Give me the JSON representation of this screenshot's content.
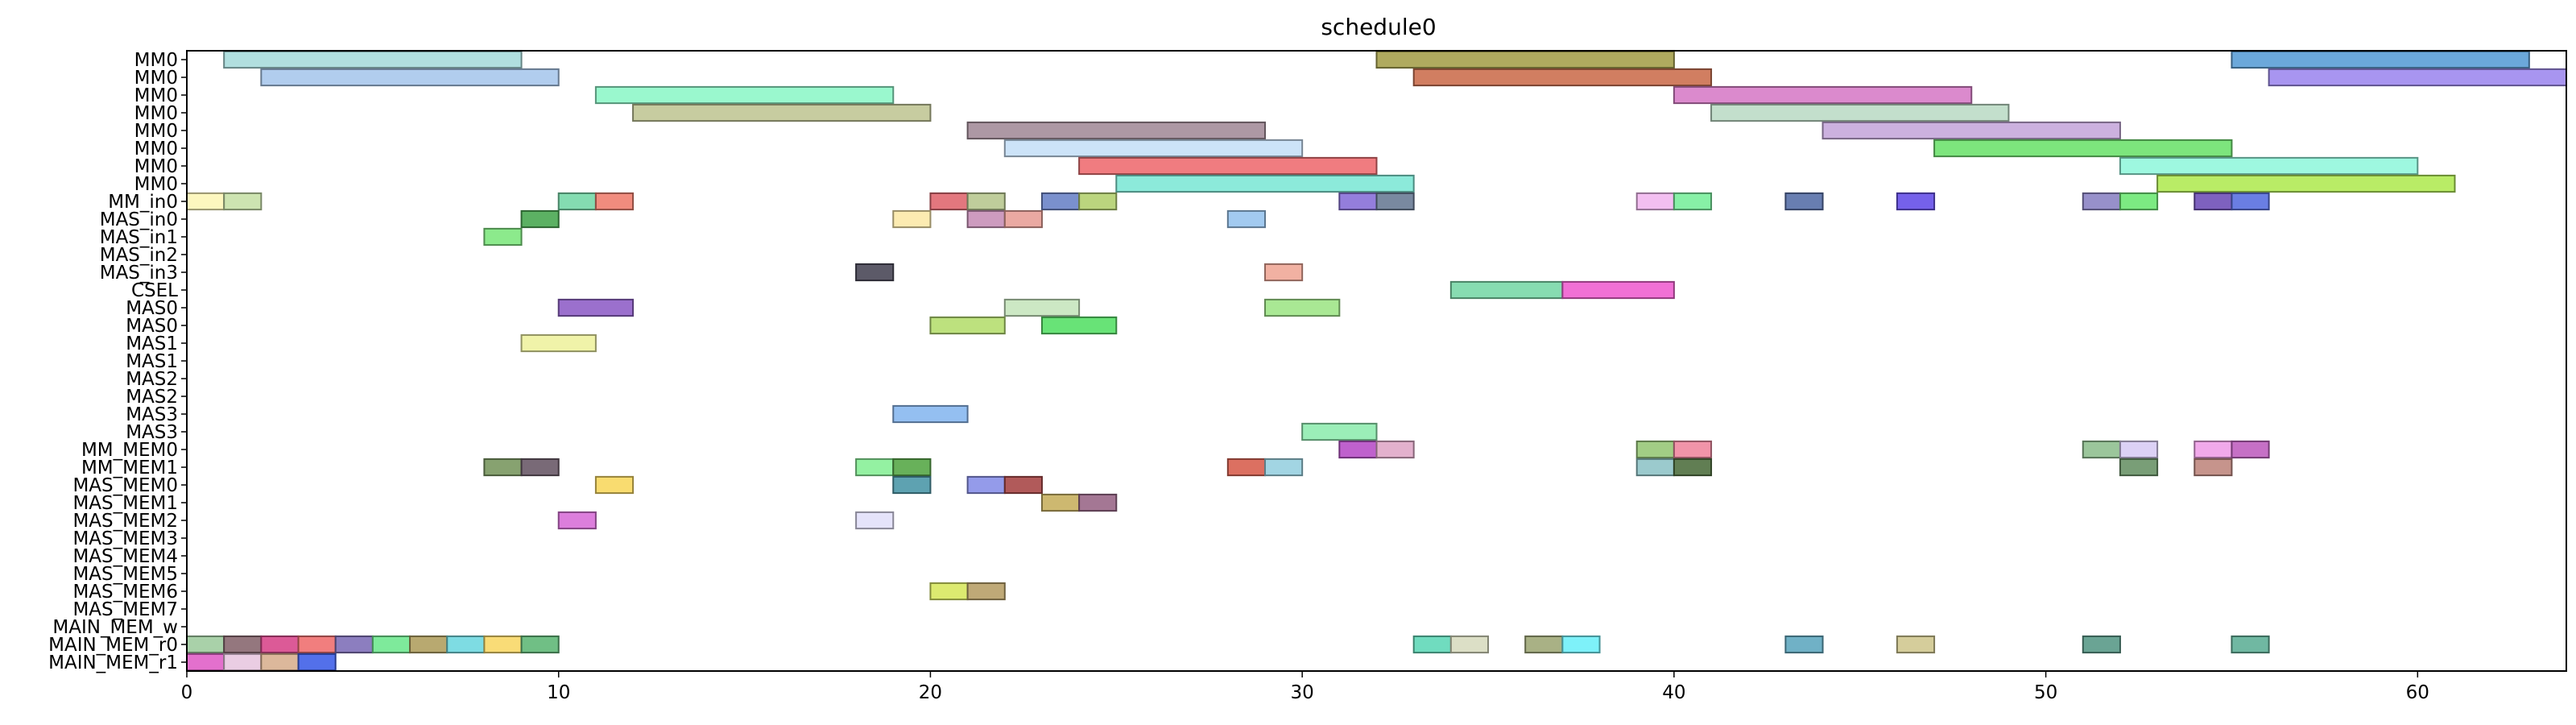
{
  "chart_data": {
    "type": "gantt",
    "title": "schedule0",
    "xlabel": "",
    "ylabel": "",
    "xlim": [
      0,
      64
    ],
    "x_ticks": [
      "0",
      "10",
      "20",
      "30",
      "40",
      "50",
      "60"
    ],
    "x_tick_values": [
      0,
      10,
      20,
      30,
      40,
      50,
      60
    ],
    "grid": false,
    "rows": [
      "MM0",
      "MM0",
      "MM0",
      "MM0",
      "MM0",
      "MM0",
      "MM0",
      "MM0",
      "MM_in0",
      "MAS_in0",
      "MAS_in1",
      "MAS_in2",
      "MAS_in3",
      "CSEL",
      "MAS0",
      "MAS0",
      "MAS1",
      "MAS1",
      "MAS2",
      "MAS2",
      "MAS3",
      "MAS3",
      "MM_MEM0",
      "MM_MEM1",
      "MAS_MEM0",
      "MAS_MEM1",
      "MAS_MEM2",
      "MAS_MEM3",
      "MAS_MEM4",
      "MAS_MEM5",
      "MAS_MEM6",
      "MAS_MEM7",
      "MAIN_MEM_w",
      "MAIN_MEM_r0",
      "MAIN_MEM_r1"
    ],
    "tasks": [
      {
        "row": 0,
        "start": 1,
        "end": 9,
        "color": "#a8dcdc"
      },
      {
        "row": 0,
        "start": 32,
        "end": 40,
        "color": "#a6a14e"
      },
      {
        "row": 0,
        "start": 55,
        "end": 63,
        "color": "#5b9ed6"
      },
      {
        "row": 1,
        "start": 2,
        "end": 10,
        "color": "#a9c8ec"
      },
      {
        "row": 1,
        "start": 33,
        "end": 41,
        "color": "#cc7050"
      },
      {
        "row": 1,
        "start": 56,
        "end": 64,
        "color": "#9f8aee"
      },
      {
        "row": 2,
        "start": 11,
        "end": 19,
        "color": "#8ff7c9"
      },
      {
        "row": 2,
        "start": 40,
        "end": 48,
        "color": "#d77dc8"
      },
      {
        "row": 3,
        "start": 12,
        "end": 20,
        "color": "#c1c796"
      },
      {
        "row": 3,
        "start": 41,
        "end": 49,
        "color": "#bcdcc6"
      },
      {
        "row": 4,
        "start": 21,
        "end": 29,
        "color": "#a48d9a"
      },
      {
        "row": 4,
        "start": 44,
        "end": 52,
        "color": "#c6a8dc"
      },
      {
        "row": 5,
        "start": 22,
        "end": 30,
        "color": "#c6e0f7"
      },
      {
        "row": 5,
        "start": 47,
        "end": 55,
        "color": "#6fe26f"
      },
      {
        "row": 6,
        "start": 24,
        "end": 32,
        "color": "#ee6e72"
      },
      {
        "row": 6,
        "start": 52,
        "end": 60,
        "color": "#93f7dd"
      },
      {
        "row": 7,
        "start": 25,
        "end": 33,
        "color": "#7fe8d6"
      },
      {
        "row": 7,
        "start": 53,
        "end": 61,
        "color": "#b1ea55"
      },
      {
        "row": 8,
        "start": 0,
        "end": 1,
        "color": "#fdf6b8"
      },
      {
        "row": 8,
        "start": 1,
        "end": 2,
        "color": "#c8e1a8"
      },
      {
        "row": 8,
        "start": 10,
        "end": 11,
        "color": "#77d8a8"
      },
      {
        "row": 8,
        "start": 11,
        "end": 12,
        "color": "#f08070"
      },
      {
        "row": 8,
        "start": 20,
        "end": 21,
        "color": "#e06870"
      },
      {
        "row": 8,
        "start": 21,
        "end": 22,
        "color": "#b8c890"
      },
      {
        "row": 8,
        "start": 23,
        "end": 24,
        "color": "#6c84c8"
      },
      {
        "row": 8,
        "start": 24,
        "end": 25,
        "color": "#b4d070"
      },
      {
        "row": 8,
        "start": 31,
        "end": 32,
        "color": "#8870d8"
      },
      {
        "row": 8,
        "start": 32,
        "end": 33,
        "color": "#6a7c96"
      },
      {
        "row": 8,
        "start": 39,
        "end": 40,
        "color": "#f2b8f0"
      },
      {
        "row": 8,
        "start": 40,
        "end": 41,
        "color": "#7aee9c"
      },
      {
        "row": 8,
        "start": 43,
        "end": 44,
        "color": "#5870a8"
      },
      {
        "row": 8,
        "start": 46,
        "end": 47,
        "color": "#6650e8"
      },
      {
        "row": 8,
        "start": 51,
        "end": 52,
        "color": "#8c84c4"
      },
      {
        "row": 8,
        "start": 52,
        "end": 53,
        "color": "#6ee874"
      },
      {
        "row": 8,
        "start": 54,
        "end": 55,
        "color": "#7050b8"
      },
      {
        "row": 8,
        "start": 55,
        "end": 56,
        "color": "#5a70e0"
      },
      {
        "row": 9,
        "start": 9,
        "end": 10,
        "color": "#4aa852"
      },
      {
        "row": 9,
        "start": 19,
        "end": 20,
        "color": "#fce9a8"
      },
      {
        "row": 9,
        "start": 21,
        "end": 22,
        "color": "#c890b8"
      },
      {
        "row": 9,
        "start": 22,
        "end": 23,
        "color": "#e8a098"
      },
      {
        "row": 9,
        "start": 28,
        "end": 29,
        "color": "#98c4ee"
      },
      {
        "row": 10,
        "start": 8,
        "end": 9,
        "color": "#80e880"
      },
      {
        "row": 12,
        "start": 18,
        "end": 19,
        "color": "#4a4858"
      },
      {
        "row": 12,
        "start": 29,
        "end": 30,
        "color": "#f0a898"
      },
      {
        "row": 13,
        "start": 34,
        "end": 37,
        "color": "#7ad8a8"
      },
      {
        "row": 13,
        "start": 37,
        "end": 40,
        "color": "#f060d0"
      },
      {
        "row": 14,
        "start": 10,
        "end": 12,
        "color": "#9060c8"
      },
      {
        "row": 14,
        "start": 22,
        "end": 24,
        "color": "#c6e6be"
      },
      {
        "row": 14,
        "start": 29,
        "end": 31,
        "color": "#a0e688"
      },
      {
        "row": 15,
        "start": 20,
        "end": 22,
        "color": "#b6de70"
      },
      {
        "row": 15,
        "start": 23,
        "end": 25,
        "color": "#58e068"
      },
      {
        "row": 16,
        "start": 9,
        "end": 11,
        "color": "#eef2a0"
      },
      {
        "row": 20,
        "start": 19,
        "end": 21,
        "color": "#88b8f0"
      },
      {
        "row": 21,
        "start": 30,
        "end": 32,
        "color": "#90ecb0"
      },
      {
        "row": 22,
        "start": 31,
        "end": 32,
        "color": "#b850c8"
      },
      {
        "row": 22,
        "start": 32,
        "end": 33,
        "color": "#e0a8c8"
      },
      {
        "row": 22,
        "start": 39,
        "end": 40,
        "color": "#98c878"
      },
      {
        "row": 22,
        "start": 40,
        "end": 41,
        "color": "#f088a0"
      },
      {
        "row": 22,
        "start": 51,
        "end": 52,
        "color": "#90c090"
      },
      {
        "row": 22,
        "start": 52,
        "end": 53,
        "color": "#d8ccf4"
      },
      {
        "row": 22,
        "start": 54,
        "end": 55,
        "color": "#f0a0e8"
      },
      {
        "row": 22,
        "start": 55,
        "end": 56,
        "color": "#c060c0"
      },
      {
        "row": 23,
        "start": 8,
        "end": 9,
        "color": "#7a9860"
      },
      {
        "row": 23,
        "start": 9,
        "end": 10,
        "color": "#6a5a68"
      },
      {
        "row": 23,
        "start": 18,
        "end": 19,
        "color": "#88f098"
      },
      {
        "row": 23,
        "start": 19,
        "end": 20,
        "color": "#58a848"
      },
      {
        "row": 23,
        "start": 28,
        "end": 29,
        "color": "#d86050"
      },
      {
        "row": 23,
        "start": 29,
        "end": 30,
        "color": "#98d0e0"
      },
      {
        "row": 23,
        "start": 39,
        "end": 40,
        "color": "#90c4c8"
      },
      {
        "row": 23,
        "start": 40,
        "end": 41,
        "color": "#507040"
      },
      {
        "row": 23,
        "start": 52,
        "end": 53,
        "color": "#6a9468"
      },
      {
        "row": 23,
        "start": 54,
        "end": 55,
        "color": "#c08880"
      },
      {
        "row": 24,
        "start": 11,
        "end": 12,
        "color": "#f8d860"
      },
      {
        "row": 24,
        "start": 19,
        "end": 20,
        "color": "#4c98a8"
      },
      {
        "row": 24,
        "start": 21,
        "end": 22,
        "color": "#8890e8"
      },
      {
        "row": 24,
        "start": 22,
        "end": 23,
        "color": "#a84848"
      },
      {
        "row": 25,
        "start": 23,
        "end": 24,
        "color": "#c8b060"
      },
      {
        "row": 25,
        "start": 24,
        "end": 25,
        "color": "#9a6888"
      },
      {
        "row": 26,
        "start": 10,
        "end": 11,
        "color": "#d870d8"
      },
      {
        "row": 26,
        "start": 18,
        "end": 19,
        "color": "#e2e0fa"
      },
      {
        "row": 30,
        "start": 20,
        "end": 21,
        "color": "#d8e860"
      },
      {
        "row": 30,
        "start": 21,
        "end": 22,
        "color": "#b8a068"
      },
      {
        "row": 33,
        "start": 0,
        "end": 1,
        "color": "#a0cca0"
      },
      {
        "row": 33,
        "start": 1,
        "end": 2,
        "color": "#886870"
      },
      {
        "row": 33,
        "start": 2,
        "end": 3,
        "color": "#d8488c"
      },
      {
        "row": 33,
        "start": 3,
        "end": 4,
        "color": "#f07070"
      },
      {
        "row": 33,
        "start": 4,
        "end": 5,
        "color": "#8070b8"
      },
      {
        "row": 33,
        "start": 5,
        "end": 6,
        "color": "#70e890"
      },
      {
        "row": 33,
        "start": 6,
        "end": 7,
        "color": "#b0a060"
      },
      {
        "row": 33,
        "start": 7,
        "end": 8,
        "color": "#70d8e0"
      },
      {
        "row": 33,
        "start": 8,
        "end": 9,
        "color": "#f8d868"
      },
      {
        "row": 33,
        "start": 9,
        "end": 10,
        "color": "#60b878"
      },
      {
        "row": 33,
        "start": 33,
        "end": 34,
        "color": "#60d8b8"
      },
      {
        "row": 33,
        "start": 34,
        "end": 35,
        "color": "#d8dcc0"
      },
      {
        "row": 33,
        "start": 36,
        "end": 37,
        "color": "#a0a878"
      },
      {
        "row": 33,
        "start": 37,
        "end": 38,
        "color": "#70f0f8"
      },
      {
        "row": 33,
        "start": 43,
        "end": 44,
        "color": "#60a8c0"
      },
      {
        "row": 33,
        "start": 46,
        "end": 47,
        "color": "#d0c890"
      },
      {
        "row": 33,
        "start": 51,
        "end": 52,
        "color": "#5a9a88"
      },
      {
        "row": 33,
        "start": 55,
        "end": 56,
        "color": "#60b098"
      },
      {
        "row": 34,
        "start": 0,
        "end": 1,
        "color": "#e060c8"
      },
      {
        "row": 34,
        "start": 1,
        "end": 2,
        "color": "#e8c8e0"
      },
      {
        "row": 34,
        "start": 2,
        "end": 3,
        "color": "#d8b090"
      },
      {
        "row": 34,
        "start": 3,
        "end": 4,
        "color": "#4060e8"
      }
    ]
  }
}
